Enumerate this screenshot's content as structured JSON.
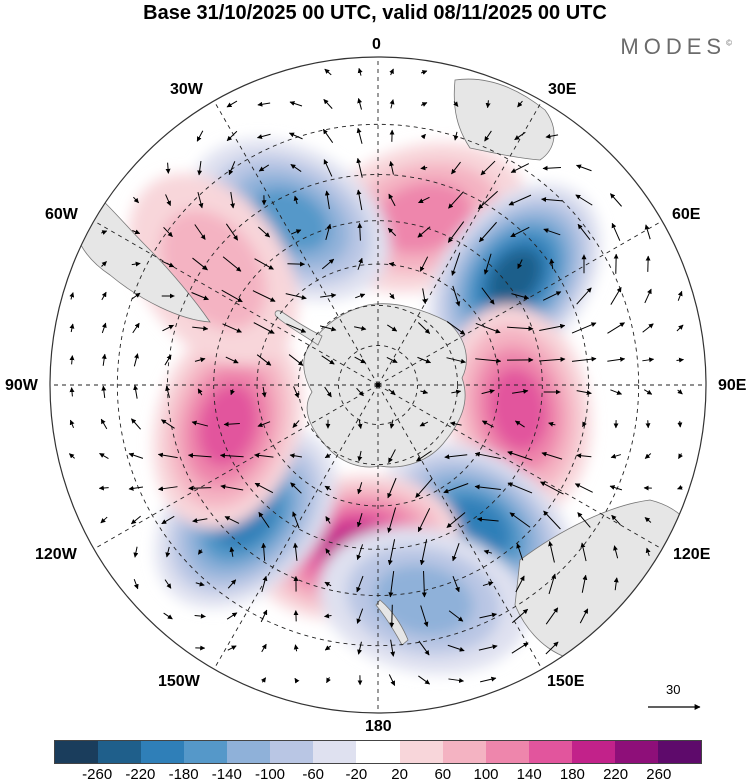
{
  "title": "Base 31/10/2025 00 UTC, valid 08/11/2025 00 UTC",
  "brand": "MODES",
  "brand_mark": "©",
  "map": {
    "projection": "south-polar-stereographic",
    "longitude_labels": {
      "0": "0",
      "30E": "30E",
      "60E": "60E",
      "90E": "90E",
      "120E": "120E",
      "150E": "150E",
      "180": "180",
      "150W": "150W",
      "120W": "120W",
      "90W": "90W",
      "60W": "60W",
      "30W": "30W"
    },
    "land_color": "#e6e6e6",
    "anomaly_centers": [
      {
        "name": "ridge-atlantic-30e",
        "lon": 15,
        "lat": -48,
        "value": 130
      },
      {
        "name": "trough-30w",
        "lon": -28,
        "lat": -45,
        "value": -170
      },
      {
        "name": "trough-60e",
        "lon": 52,
        "lat": -48,
        "value": -250
      },
      {
        "name": "ridge-90e",
        "lon": 100,
        "lat": -55,
        "value": 160
      },
      {
        "name": "trough-130e",
        "lon": 145,
        "lat": -48,
        "value": -200
      },
      {
        "name": "ridge-170w",
        "lon": -172,
        "lat": -50,
        "value": 190
      },
      {
        "name": "trough-135w",
        "lon": -135,
        "lat": -45,
        "value": -180
      },
      {
        "name": "ridge-100w",
        "lon": -105,
        "lat": -52,
        "value": 160
      },
      {
        "name": "ridge-50w",
        "lon": -55,
        "lat": -42,
        "value": 60
      },
      {
        "name": "trough-165e",
        "lon": 168,
        "lat": -38,
        "value": -100
      }
    ]
  },
  "reference_vector": {
    "label": "30"
  },
  "colorbar": {
    "colors": [
      "#1a3d5c",
      "#1f5f8b",
      "#2f7fb8",
      "#5598c9",
      "#8fb1d9",
      "#b9c6e4",
      "#dfe1f0",
      "#ffffff",
      "#f8d6da",
      "#f4b3c2",
      "#ee86ac",
      "#e2559d",
      "#c2228a",
      "#8e0f79",
      "#5e0a6b"
    ],
    "tick_labels": [
      "-260",
      "-220",
      "-180",
      "-140",
      "-100",
      "-60",
      "-20",
      "20",
      "60",
      "100",
      "140",
      "180",
      "220",
      "260"
    ]
  }
}
